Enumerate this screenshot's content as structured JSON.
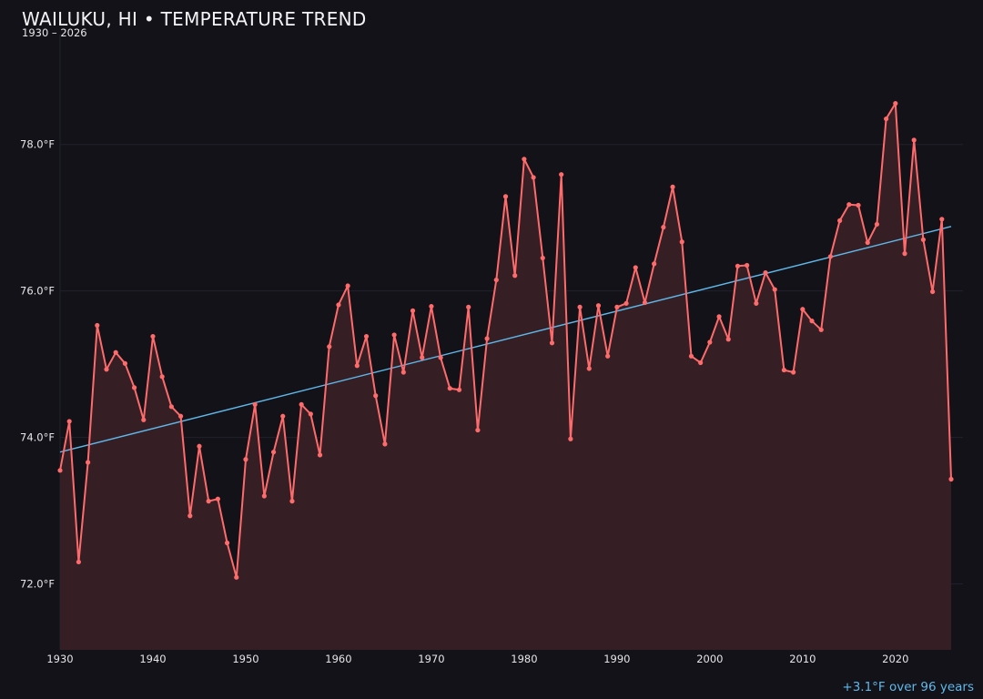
{
  "chart_data": {
    "type": "line",
    "title": "WAILUKU, HI • TEMPERATURE TREND",
    "subtitle": "1930 – 2026",
    "annotation": "+3.1°F over 96 years",
    "xlabel": "",
    "ylabel": "",
    "xlim": [
      1930,
      2026
    ],
    "ylim": [
      71.1,
      79.5
    ],
    "x_ticks": [
      "1930",
      "1940",
      "1950",
      "1960",
      "1970",
      "1980",
      "1990",
      "2000",
      "2010",
      "2020"
    ],
    "y_ticks": [
      {
        "value": 72,
        "label": "72.0°F"
      },
      {
        "value": 74,
        "label": "74.0°F"
      },
      {
        "value": 76,
        "label": "76.0°F"
      },
      {
        "value": 78,
        "label": "78.0°F"
      }
    ],
    "grid": true,
    "colors": {
      "background": "#131218",
      "series": "#ff6b6b",
      "fill": "#351f25",
      "trend": "#5fb8ea",
      "grid": "#22212a"
    },
    "x": [
      1930,
      1931,
      1932,
      1933,
      1934,
      1935,
      1936,
      1937,
      1938,
      1939,
      1940,
      1941,
      1942,
      1943,
      1944,
      1945,
      1946,
      1947,
      1948,
      1949,
      1950,
      1951,
      1952,
      1953,
      1954,
      1955,
      1956,
      1957,
      1958,
      1959,
      1960,
      1961,
      1962,
      1963,
      1964,
      1965,
      1966,
      1967,
      1968,
      1969,
      1970,
      1971,
      1972,
      1973,
      1974,
      1975,
      1976,
      1977,
      1978,
      1979,
      1980,
      1981,
      1982,
      1983,
      1984,
      1985,
      1986,
      1987,
      1988,
      1989,
      1990,
      1991,
      1992,
      1993,
      1994,
      1995,
      1996,
      1997,
      1998,
      1999,
      2000,
      2001,
      2002,
      2003,
      2004,
      2005,
      2006,
      2007,
      2008,
      2009,
      2010,
      2011,
      2012,
      2013,
      2014,
      2015,
      2016,
      2017,
      2018,
      2019,
      2020,
      2021,
      2022,
      2023,
      2024,
      2025,
      2026
    ],
    "values": [
      73.55,
      74.22,
      72.3,
      73.66,
      75.53,
      74.93,
      75.16,
      75.01,
      74.68,
      74.24,
      75.38,
      74.83,
      74.42,
      74.29,
      72.93,
      73.88,
      73.13,
      73.16,
      72.56,
      72.09,
      73.7,
      74.45,
      73.2,
      73.8,
      74.29,
      73.13,
      74.45,
      74.32,
      73.76,
      75.24,
      75.81,
      76.07,
      74.98,
      75.38,
      74.57,
      73.91,
      75.4,
      74.89,
      75.73,
      75.09,
      75.79,
      75.09,
      74.67,
      74.65,
      75.78,
      74.1,
      75.35,
      76.15,
      77.29,
      76.21,
      77.8,
      77.55,
      76.45,
      75.29,
      77.59,
      73.98,
      75.78,
      74.94,
      75.8,
      75.11,
      75.78,
      75.83,
      76.32,
      75.84,
      76.37,
      76.87,
      77.42,
      76.67,
      75.11,
      75.02,
      75.3,
      75.65,
      75.34,
      76.34,
      76.35,
      75.83,
      76.25,
      76.02,
      74.92,
      74.89,
      75.75,
      75.59,
      75.47,
      76.47,
      76.96,
      77.18,
      77.17,
      76.66,
      76.91,
      78.35,
      78.56,
      76.51,
      78.06,
      76.7,
      75.99,
      76.98,
      73.43
    ],
    "trend": {
      "start": [
        1930,
        73.8
      ],
      "end": [
        2026,
        76.88
      ]
    }
  }
}
